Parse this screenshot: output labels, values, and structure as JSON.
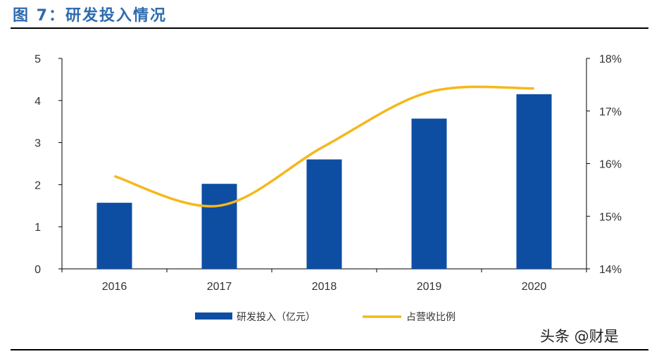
{
  "title": "图 7：研发投入情况",
  "watermark": "头条 @财是",
  "chart_data": {
    "type": "bar+line",
    "categories": [
      "2016",
      "2017",
      "2018",
      "2019",
      "2020"
    ],
    "series": [
      {
        "name": "研发投入（亿元）",
        "type": "bar",
        "axis": "left",
        "color": "#0d4ea3",
        "values": [
          1.57,
          2.02,
          2.6,
          3.57,
          4.15
        ]
      },
      {
        "name": "占营收比例",
        "type": "line",
        "axis": "right",
        "color": "#f5b81c",
        "values": [
          15.76,
          15.2,
          16.33,
          17.36,
          17.43
        ]
      }
    ],
    "left_axis": {
      "ylim": [
        0,
        5
      ],
      "ticks": [
        "0",
        "1",
        "2",
        "3",
        "4",
        "5"
      ]
    },
    "right_axis": {
      "ylim": [
        14,
        18
      ],
      "ticks": [
        "14%",
        "15%",
        "16%",
        "17%",
        "18%"
      ]
    },
    "legend": "bottom",
    "grid": false
  }
}
